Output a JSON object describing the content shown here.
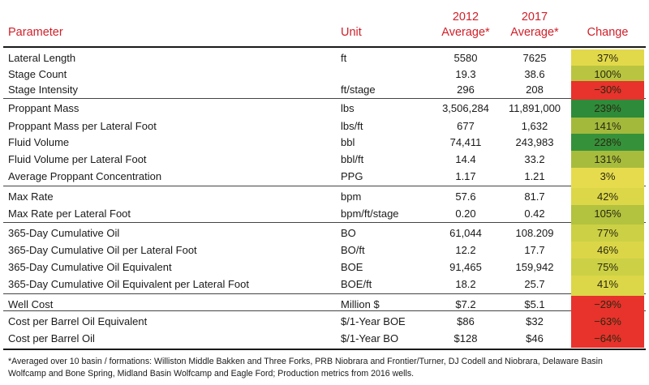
{
  "header": {
    "parameter": "Parameter",
    "unit": "Unit",
    "avg2012_line1": "2012",
    "avg2012_line2": "Average*",
    "avg2017_line1": "2017",
    "avg2017_line2": "Average*",
    "change": "Change"
  },
  "rows": [
    {
      "parameter": "Lateral Length",
      "unit": "ft",
      "avg2012": "5580",
      "avg2017": "7625",
      "change": "37%",
      "color": "#e2d94a"
    },
    {
      "parameter": "Stage Count",
      "unit": "",
      "avg2012": "19.3",
      "avg2017": "38.6",
      "change": "100%",
      "color": "#b9c540"
    },
    {
      "parameter": "Stage Intensity",
      "unit": "ft/stage",
      "avg2012": "296",
      "avg2017": "208",
      "change": "−30%",
      "color": "#e8322c"
    },
    {
      "parameter": "Proppant Mass",
      "unit": "lbs",
      "avg2012": "3,506,284",
      "avg2017": "11,891,000",
      "change": "239%",
      "color": "#2e8b3a"
    },
    {
      "parameter": "Proppant Mass per Lateral Foot",
      "unit": "lbs/ft",
      "avg2012": "677",
      "avg2017": "1,632",
      "change": "141%",
      "color": "#a2b93c"
    },
    {
      "parameter": "Fluid Volume",
      "unit": "bbl",
      "avg2012": "74,411",
      "avg2017": "243,983",
      "change": "228%",
      "color": "#36913b"
    },
    {
      "parameter": "Fluid Volume per Lateral Foot",
      "unit": "bbl/ft",
      "avg2012": "14.4",
      "avg2017": "33.2",
      "change": "131%",
      "color": "#a7bc3d"
    },
    {
      "parameter": "Average Proppant Concentration",
      "unit": "PPG",
      "avg2012": "1.17",
      "avg2017": "1.21",
      "change": "3%",
      "color": "#e6db4c"
    },
    {
      "parameter": "Max Rate",
      "unit": "bpm",
      "avg2012": "57.6",
      "avg2017": "81.7",
      "change": "42%",
      "color": "#dcd748"
    },
    {
      "parameter": "Max Rate per Lateral Foot",
      "unit": "bpm/ft/stage",
      "avg2012": "0.20",
      "avg2017": "0.42",
      "change": "105%",
      "color": "#b3c23f"
    },
    {
      "parameter": "365-Day Cumulative Oil",
      "unit": "BO",
      "avg2012": "61,044",
      "avg2017": "108.209",
      "change": "77%",
      "color": "#ccd044"
    },
    {
      "parameter": "365-Day Cumulative Oil per Lateral Foot",
      "unit": "BO/ft",
      "avg2012": "12.2",
      "avg2017": "17.7",
      "change": "46%",
      "color": "#dbd648"
    },
    {
      "parameter": "365-Day Cumulative Oil Equivalent",
      "unit": "BOE",
      "avg2012": "91,465",
      "avg2017": "159,942",
      "change": "75%",
      "color": "#ccd044"
    },
    {
      "parameter": "365-Day Cumulative Oil Equivalent per Lateral Foot",
      "unit": "BOE/ft",
      "avg2012": "18.2",
      "avg2017": "25.7",
      "change": "41%",
      "color": "#dcd748"
    },
    {
      "parameter": "Well Cost",
      "unit": "Million $",
      "avg2012": "$7.2",
      "avg2017": "$5.1",
      "change": "−29%",
      "color": "#e8322c"
    },
    {
      "parameter": "Cost per Barrel Oil Equivalent",
      "unit": "$/1-Year BOE",
      "avg2012": "$86",
      "avg2017": "$32",
      "change": "−63%",
      "color": "#e8322c"
    },
    {
      "parameter": "Cost per Barrel Oil",
      "unit": "$/1-Year BO",
      "avg2012": "$128",
      "avg2017": "$46",
      "change": "−64%",
      "color": "#e8322c"
    }
  ],
  "footnote": "*Averaged over 10 basin / formations: Williston Middle Bakken and Three Forks, PRB Niobrara and Frontier/Turner, DJ Codell and Niobrara, Delaware Basin Wolfcamp and Bone Spring, Midland Basin Wolfcamp and Eagle Ford; Production metrics from 2016 wells."
}
